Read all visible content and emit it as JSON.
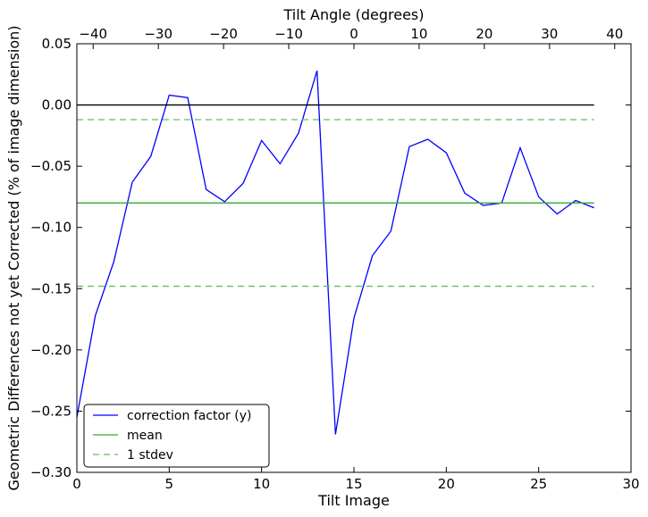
{
  "chart_data": {
    "type": "line",
    "xlabel": "Tilt Image",
    "ylabel": "Geometric Differences not yet Corrected (% of image dimension)",
    "top_xlabel": "Tilt Angle (degrees)",
    "xlim": [
      0,
      30
    ],
    "ylim": [
      -0.3,
      0.05
    ],
    "top_xlim": [
      -42.5,
      42.5
    ],
    "xticks": [
      0,
      5,
      10,
      15,
      20,
      25,
      30
    ],
    "xtick_labels": [
      "0",
      "5",
      "10",
      "15",
      "20",
      "25",
      "30"
    ],
    "yticks": [
      0.05,
      0.0,
      -0.05,
      -0.1,
      -0.15,
      -0.2,
      -0.25,
      -0.3
    ],
    "ytick_labels": [
      "0.05",
      "0.00",
      "−0.05",
      "−0.10",
      "−0.15",
      "−0.20",
      "−0.25",
      "−0.30"
    ],
    "top_xticks": [
      -40,
      -30,
      -20,
      -10,
      0,
      10,
      20,
      30,
      40
    ],
    "top_xtick_labels": [
      "−40",
      "−30",
      "−20",
      "−10",
      "0",
      "10",
      "20",
      "30",
      "40"
    ],
    "grid": false,
    "legend_position": "lower-left",
    "series": [
      {
        "name": "correction factor (y)",
        "color": "#0000ff",
        "style": "solid",
        "x": [
          0,
          1,
          2,
          3,
          4,
          5,
          6,
          7,
          8,
          9,
          10,
          11,
          12,
          13,
          14,
          15,
          16,
          17,
          18,
          19,
          20,
          21,
          22,
          23,
          24,
          25,
          26,
          27,
          28
        ],
        "y": [
          -0.255,
          -0.172,
          -0.128,
          -0.063,
          -0.042,
          0.008,
          0.006,
          -0.069,
          -0.079,
          -0.064,
          -0.029,
          -0.048,
          -0.023,
          0.028,
          -0.269,
          -0.174,
          -0.123,
          -0.103,
          -0.034,
          -0.028,
          -0.039,
          -0.072,
          -0.082,
          -0.08,
          -0.035,
          -0.075,
          -0.089,
          -0.078,
          -0.084
        ]
      },
      {
        "name": "mean",
        "color": "#33aa33",
        "style": "solid",
        "x": [
          0,
          28
        ],
        "y": [
          -0.08,
          -0.08
        ]
      },
      {
        "name": "1 stdev",
        "color": "#66bb66",
        "style": "dashed",
        "x": [
          0,
          28
        ],
        "y": [
          -0.012,
          -0.012
        ]
      },
      {
        "name": "",
        "color": "#66bb66",
        "style": "dashed",
        "x": [
          0,
          28
        ],
        "y": [
          -0.148,
          -0.148
        ]
      },
      {
        "name": "",
        "color": "#000000",
        "style": "solid",
        "x": [
          0,
          28
        ],
        "y": [
          0.0,
          0.0
        ]
      }
    ],
    "legend": [
      {
        "label": "correction factor (y)",
        "color": "#0000ff",
        "style": "solid"
      },
      {
        "label": "mean",
        "color": "#33aa33",
        "style": "solid"
      },
      {
        "label": "1 stdev",
        "color": "#66bb66",
        "style": "dashed"
      }
    ]
  }
}
